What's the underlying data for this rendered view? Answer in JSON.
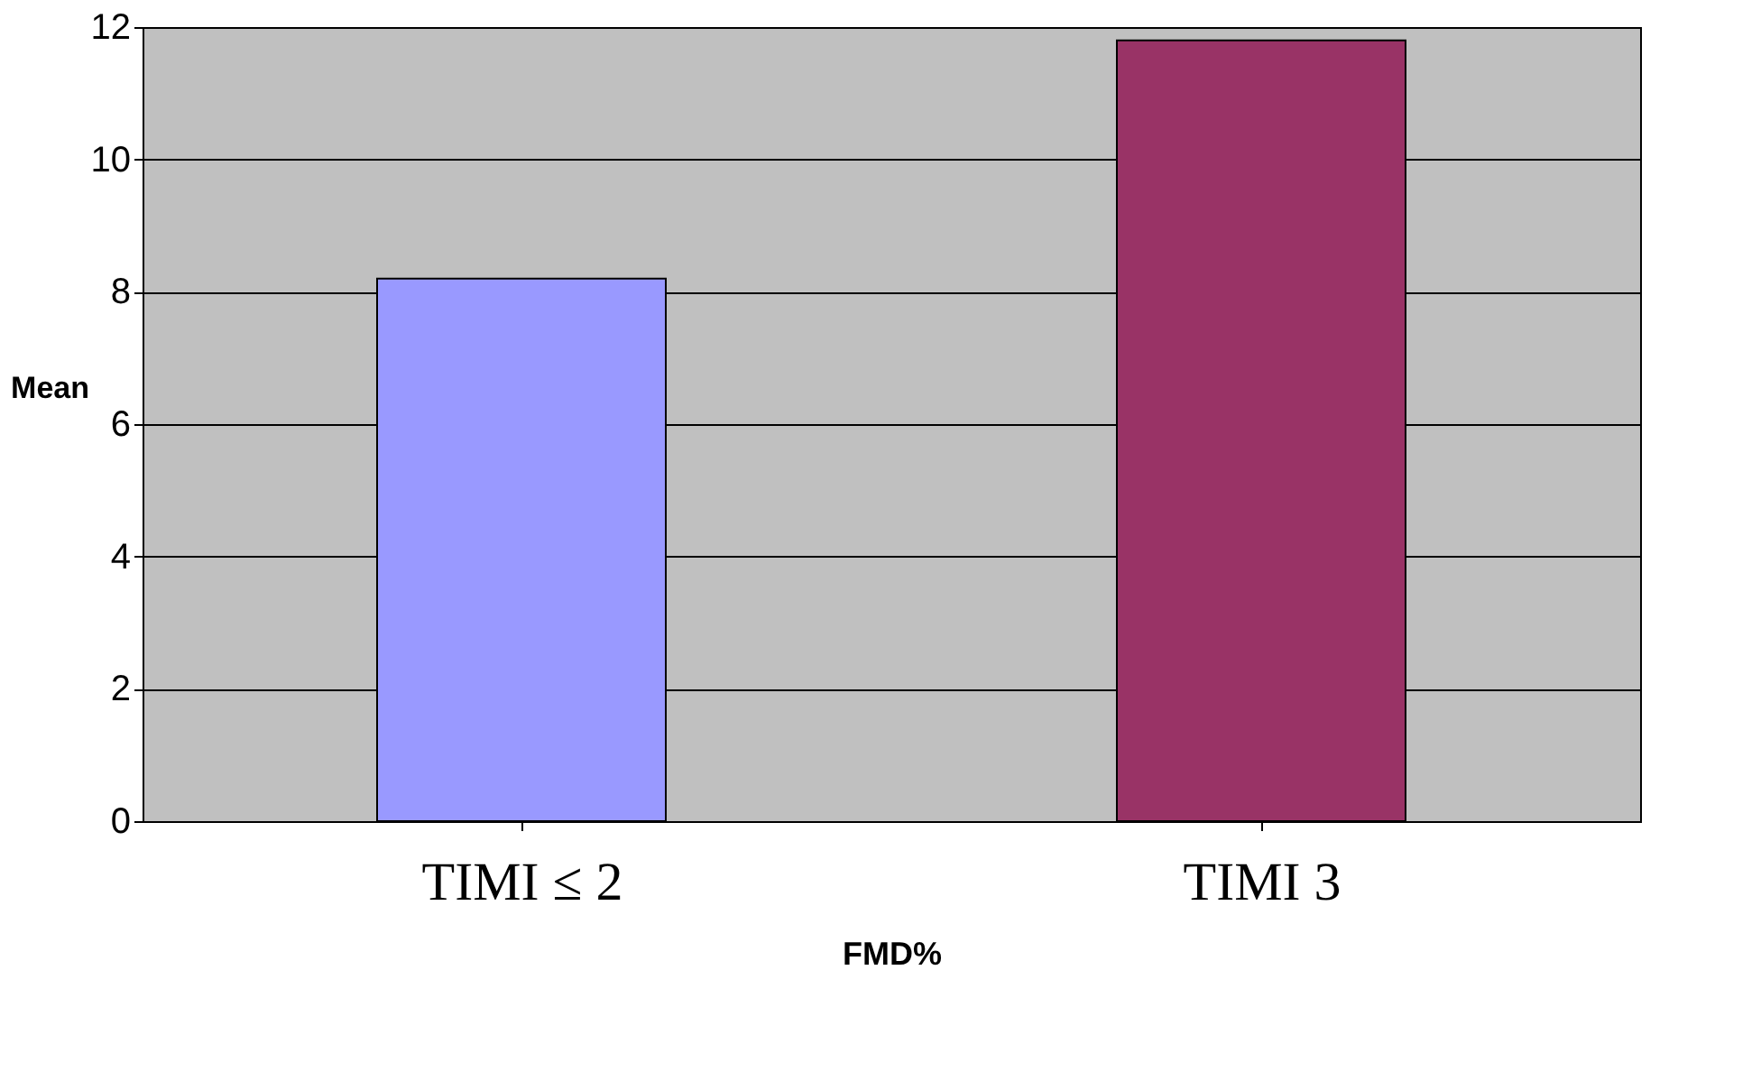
{
  "chart_data": {
    "type": "bar",
    "categories": [
      "TIMI ≤ 2",
      "TIMI 3"
    ],
    "values": [
      8.2,
      11.8
    ],
    "colors": [
      "#9999ff",
      "#993366"
    ],
    "ylabel": "Mean",
    "xlabel": "FMD%",
    "ylim": [
      0,
      12
    ],
    "yticks": [
      0,
      2,
      4,
      6,
      8,
      10,
      12
    ],
    "grid": "y"
  }
}
